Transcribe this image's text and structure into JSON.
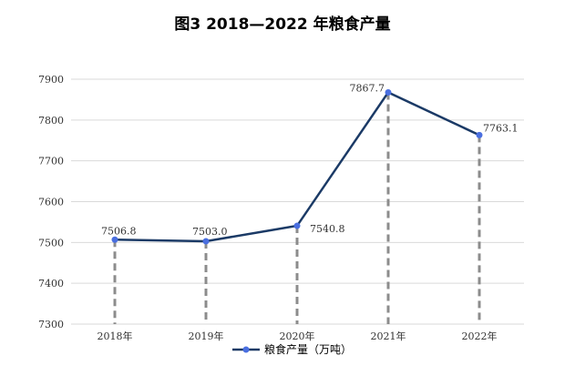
{
  "chart_data": {
    "type": "line",
    "title": "图3   2018—2022 年粮食产量",
    "categories": [
      "2018年",
      "2019年",
      "2020年",
      "2021年",
      "2022年"
    ],
    "series": [
      {
        "name": "粮食产量（万吨）",
        "values": [
          7506.8,
          7503.0,
          7540.8,
          7867.7,
          7763.1
        ]
      }
    ],
    "data_labels": [
      "7506.8",
      "7503.0",
      "7540.8",
      "7867.7",
      "7763.1"
    ],
    "yticks": [
      "7300",
      "7400",
      "7500",
      "7600",
      "7700",
      "7800",
      "7900"
    ],
    "ylim": [
      7300,
      7900
    ],
    "grid": true,
    "drop_lines": true,
    "legend_position": "bottom",
    "colors": {
      "line": "#1b3a66",
      "marker": "#4a6fe0",
      "grid": "#d9d9d9",
      "dropline": "#8c8c8c"
    }
  }
}
